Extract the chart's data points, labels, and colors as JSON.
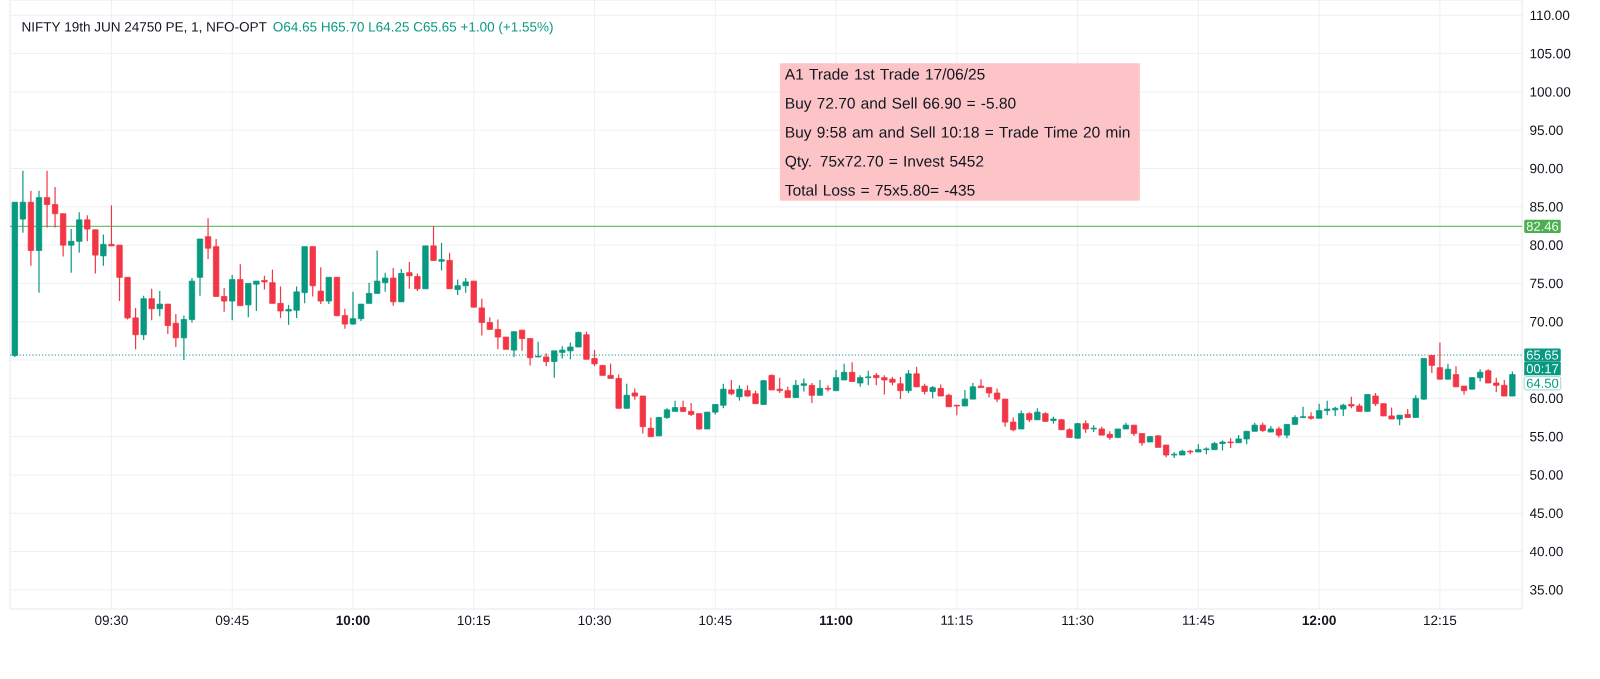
{
  "chart_data": {
    "type": "candlestick",
    "title": "NIFTY 19th JUN 24750 PE, 1, NFO-OPT",
    "subtitle": "O64.65 H65.70 L64.25 C65.65 +1.00 (+1.55%)",
    "x": [
      9.3,
      9.3167,
      9.3333,
      9.35,
      9.3667,
      9.3833,
      9.4,
      9.4167,
      9.4333,
      9.45,
      9.4667,
      9.4833,
      9.5,
      9.5167,
      9.5333,
      9.55,
      9.5667,
      9.5833,
      9.6,
      9.6167,
      9.6333,
      9.65,
      9.6667,
      9.6833,
      9.7,
      9.7167,
      9.7333,
      9.75,
      9.7667,
      9.7833,
      9.8,
      9.8167,
      9.8333,
      9.85,
      9.8667,
      9.8833,
      9.9,
      9.9167,
      9.9333,
      9.95,
      9.9667,
      9.9833,
      10.0,
      10.0167,
      10.0333,
      10.05,
      10.0667,
      10.0833,
      10.1,
      10.1167,
      10.1333,
      10.15,
      10.1667,
      10.1833,
      10.2,
      10.2167,
      10.2333,
      10.25,
      10.2667,
      10.2833,
      10.3,
      10.3167,
      10.3333,
      10.35,
      10.3667,
      10.3833,
      10.4,
      10.4167,
      10.4333,
      10.45,
      10.4667,
      10.4833,
      10.5,
      10.5167,
      10.5333,
      10.55,
      10.5667,
      10.5833,
      10.6,
      10.6167,
      10.6333,
      10.65,
      10.6667,
      10.6833,
      10.7,
      10.7167,
      10.7333,
      10.75,
      10.7667,
      10.7833,
      10.8,
      10.8167,
      10.8333,
      10.85,
      10.8667,
      10.8833,
      10.9,
      10.9167,
      10.9333,
      10.95,
      10.9667,
      10.9833,
      11.0,
      11.0167,
      11.0333,
      11.05,
      11.0667,
      11.0833,
      11.1,
      11.1167,
      11.1333,
      11.15,
      11.1667,
      11.1833,
      11.2,
      11.2167,
      11.2333,
      11.25,
      11.2667,
      11.2833,
      11.3,
      11.3167,
      11.3333,
      11.35,
      11.3667,
      11.3833,
      11.4,
      11.4167,
      11.4333,
      11.45,
      11.4667,
      11.4833,
      11.5,
      11.5167,
      11.5333,
      11.55,
      11.5667,
      11.5833,
      11.6,
      11.6167,
      11.6333,
      11.65,
      11.6667,
      11.6833,
      11.7,
      11.7167,
      11.7333,
      11.75,
      11.7667,
      11.7833,
      11.8,
      11.8167,
      11.8333,
      11.85,
      11.8667,
      11.8833,
      11.9,
      11.9167,
      11.9333,
      11.95,
      11.9667,
      11.9833,
      12.0,
      12.0167,
      12.0333,
      12.05,
      12.0667,
      12.0833,
      12.1,
      12.1167,
      12.1333,
      12.15,
      12.1667,
      12.1833,
      12.2,
      12.2167,
      12.2333,
      12.25,
      12.2667,
      12.2833,
      12.3,
      12.3167,
      12.3333,
      12.35,
      12.3667,
      12.3833,
      12.4
    ],
    "ohlc": [
      [
        65.6,
        85.6,
        65.4,
        85.6
      ],
      [
        83.4,
        89.7,
        81.6,
        85.6
      ],
      [
        85.6,
        87.1,
        77.3,
        79.3
      ],
      [
        79.3,
        87.1,
        73.8,
        86.2
      ],
      [
        86.2,
        89.7,
        82.3,
        85.3
      ],
      [
        85.3,
        87.6,
        82.3,
        84.1
      ],
      [
        84.1,
        84.1,
        78.5,
        80.0
      ],
      [
        80.0,
        82.1,
        76.4,
        80.5
      ],
      [
        80.5,
        84.3,
        79.0,
        83.3
      ],
      [
        83.3,
        83.9,
        80.5,
        82.1
      ],
      [
        82.0,
        82.0,
        76.3,
        78.7
      ],
      [
        78.6,
        81.4,
        77.3,
        80.1
      ],
      [
        80.1,
        85.2,
        79.9,
        79.9
      ],
      [
        80.0,
        80.0,
        72.7,
        75.8
      ],
      [
        75.8,
        75.8,
        70.3,
        70.5
      ],
      [
        70.5,
        71.8,
        66.4,
        68.3
      ],
      [
        68.3,
        73.4,
        67.6,
        73.0
      ],
      [
        73.0,
        74.3,
        70.2,
        71.7
      ],
      [
        71.7,
        74.0,
        70.7,
        72.3
      ],
      [
        72.3,
        72.3,
        68.4,
        69.5
      ],
      [
        69.8,
        71.0,
        66.7,
        67.9
      ],
      [
        67.9,
        70.8,
        65.0,
        70.3
      ],
      [
        70.3,
        75.7,
        69.9,
        75.3
      ],
      [
        75.8,
        80.8,
        73.4,
        80.8
      ],
      [
        81.1,
        83.5,
        78.2,
        79.6
      ],
      [
        79.8,
        80.8,
        73.3,
        73.3
      ],
      [
        73.3,
        74.4,
        71.3,
        72.7
      ],
      [
        72.7,
        76.1,
        70.2,
        75.5
      ],
      [
        75.5,
        77.5,
        72.1,
        72.1
      ],
      [
        72.2,
        75.0,
        70.6,
        75.0
      ],
      [
        74.9,
        75.3,
        71.4,
        75.3
      ],
      [
        75.4,
        76.0,
        74.2,
        75.2
      ],
      [
        75.1,
        76.8,
        72.4,
        72.4
      ],
      [
        72.4,
        74.6,
        70.5,
        71.4
      ],
      [
        71.4,
        72.2,
        69.6,
        71.6
      ],
      [
        71.5,
        74.6,
        70.5,
        73.9
      ],
      [
        73.8,
        79.8,
        72.4,
        79.8
      ],
      [
        79.8,
        79.8,
        73.3,
        74.7
      ],
      [
        74.0,
        77.1,
        72.3,
        72.7
      ],
      [
        72.7,
        75.8,
        72.3,
        75.8
      ],
      [
        75.8,
        75.8,
        70.7,
        70.8
      ],
      [
        70.8,
        71.7,
        69.1,
        69.7
      ],
      [
        69.7,
        73.9,
        69.6,
        70.4
      ],
      [
        70.4,
        72.3,
        70.1,
        72.3
      ],
      [
        72.4,
        75.1,
        72.4,
        73.7
      ],
      [
        73.7,
        79.3,
        73.7,
        75.3
      ],
      [
        75.1,
        76.4,
        73.9,
        75.7
      ],
      [
        75.7,
        77.0,
        72.1,
        72.6
      ],
      [
        72.6,
        76.9,
        72.6,
        76.3
      ],
      [
        76.4,
        77.8,
        74.3,
        76.0
      ],
      [
        75.9,
        76.3,
        74.0,
        74.3
      ],
      [
        74.3,
        79.9,
        74.3,
        79.9
      ],
      [
        79.9,
        82.5,
        78.0,
        78.0
      ],
      [
        77.9,
        80.3,
        76.7,
        78.1
      ],
      [
        78.0,
        79.0,
        74.3,
        74.3
      ],
      [
        74.2,
        75.5,
        73.5,
        74.7
      ],
      [
        74.7,
        75.7,
        73.8,
        75.2
      ],
      [
        75.3,
        75.3,
        71.9,
        71.9
      ],
      [
        71.8,
        73.0,
        68.2,
        69.9
      ],
      [
        69.9,
        70.6,
        69.0,
        69.0
      ],
      [
        69.0,
        70.3,
        66.4,
        68.0
      ],
      [
        68.0,
        68.0,
        66.4,
        66.4
      ],
      [
        66.3,
        68.7,
        65.4,
        68.7
      ],
      [
        68.9,
        68.9,
        66.2,
        67.8
      ],
      [
        67.8,
        67.8,
        64.3,
        65.3
      ],
      [
        65.4,
        67.4,
        65.4,
        65.5
      ],
      [
        65.4,
        65.9,
        64.2,
        64.8
      ],
      [
        64.8,
        66.2,
        62.7,
        66.2
      ],
      [
        66.0,
        66.8,
        65.2,
        66.3
      ],
      [
        66.2,
        67.3,
        65.1,
        66.7
      ],
      [
        66.7,
        68.7,
        66.7,
        68.6
      ],
      [
        68.3,
        68.7,
        65.1,
        65.1
      ],
      [
        65.2,
        66.3,
        64.2,
        64.5
      ],
      [
        64.3,
        64.3,
        63.0,
        63.0
      ],
      [
        63.0,
        64.5,
        62.6,
        62.6
      ],
      [
        62.6,
        63.1,
        58.7,
        58.7
      ],
      [
        58.7,
        61.9,
        58.7,
        60.4
      ],
      [
        60.7,
        61.3,
        59.8,
        60.3
      ],
      [
        60.3,
        60.3,
        55.4,
        56.3
      ],
      [
        56.1,
        57.5,
        55.0,
        55.0
      ],
      [
        55.1,
        57.6,
        55.1,
        57.5
      ],
      [
        57.5,
        58.7,
        57.3,
        58.5
      ],
      [
        58.3,
        59.7,
        58.3,
        58.8
      ],
      [
        58.8,
        59.7,
        58.2,
        58.3
      ],
      [
        58.3,
        59.4,
        57.7,
        57.9
      ],
      [
        58.0,
        58.0,
        55.9,
        56.0
      ],
      [
        56.0,
        58.2,
        56.0,
        58.2
      ],
      [
        58.2,
        59.2,
        57.9,
        59.2
      ],
      [
        59.1,
        61.9,
        58.7,
        61.2
      ],
      [
        61.1,
        62.4,
        60.4,
        60.6
      ],
      [
        60.2,
        61.7,
        59.7,
        61.2
      ],
      [
        61.0,
        61.7,
        60.2,
        60.3
      ],
      [
        60.6,
        61.0,
        59.3,
        59.3
      ],
      [
        59.2,
        62.4,
        59.2,
        62.3
      ],
      [
        63.0,
        63.1,
        61.1,
        61.1
      ],
      [
        61.2,
        62.7,
        60.7,
        61.0
      ],
      [
        61.0,
        61.5,
        60.1,
        60.1
      ],
      [
        60.1,
        62.4,
        60.1,
        61.7
      ],
      [
        61.7,
        62.6,
        60.9,
        61.9
      ],
      [
        61.7,
        62.0,
        59.4,
        60.4
      ],
      [
        60.4,
        62.4,
        60.4,
        61.3
      ],
      [
        61.3,
        61.7,
        60.9,
        61.2
      ],
      [
        61.0,
        63.7,
        61.0,
        62.7
      ],
      [
        62.4,
        64.5,
        62.4,
        63.4
      ],
      [
        63.4,
        64.7,
        62.2,
        62.2
      ],
      [
        62.0,
        63.0,
        61.5,
        62.7
      ],
      [
        62.7,
        63.6,
        61.7,
        62.8
      ],
      [
        63.0,
        63.3,
        61.7,
        62.7
      ],
      [
        62.7,
        63.0,
        60.5,
        62.4
      ],
      [
        62.5,
        62.8,
        61.7,
        62.1
      ],
      [
        61.9,
        62.8,
        59.9,
        61.0
      ],
      [
        61.0,
        63.7,
        60.7,
        63.2
      ],
      [
        63.2,
        64.1,
        61.5,
        61.5
      ],
      [
        61.6,
        61.9,
        60.5,
        60.9
      ],
      [
        60.9,
        61.6,
        60.0,
        61.4
      ],
      [
        61.3,
        61.8,
        60.3,
        60.3
      ],
      [
        60.4,
        60.6,
        58.9,
        58.9
      ],
      [
        59.1,
        59.1,
        57.8,
        59.0
      ],
      [
        59.0,
        61.1,
        59.0,
        59.9
      ],
      [
        59.9,
        62.0,
        59.9,
        61.5
      ],
      [
        61.6,
        62.5,
        61.4,
        61.4
      ],
      [
        61.4,
        61.4,
        60.1,
        60.7
      ],
      [
        60.7,
        61.3,
        59.5,
        59.9
      ],
      [
        59.9,
        59.9,
        56.3,
        56.9
      ],
      [
        56.9,
        57.5,
        55.7,
        55.9
      ],
      [
        56.0,
        58.4,
        56.0,
        58.0
      ],
      [
        58.0,
        58.2,
        56.9,
        57.2
      ],
      [
        57.2,
        58.7,
        57.2,
        58.2
      ],
      [
        58.0,
        58.2,
        56.9,
        57.0
      ],
      [
        57.1,
        57.6,
        56.7,
        57.3
      ],
      [
        57.2,
        57.3,
        55.9,
        55.9
      ],
      [
        55.9,
        56.1,
        54.9,
        54.9
      ],
      [
        54.8,
        56.8,
        54.7,
        56.7
      ],
      [
        56.7,
        57.1,
        55.5,
        56.0
      ],
      [
        56.0,
        56.5,
        55.6,
        56.1
      ],
      [
        56.0,
        56.3,
        55.2,
        55.2
      ],
      [
        55.3,
        55.7,
        54.6,
        54.9
      ],
      [
        54.9,
        56.0,
        54.8,
        56.0
      ],
      [
        56.0,
        56.8,
        56.0,
        56.5
      ],
      [
        56.5,
        56.5,
        55.1,
        55.4
      ],
      [
        55.4,
        55.4,
        53.8,
        54.2
      ],
      [
        54.3,
        55.1,
        54.3,
        55.0
      ],
      [
        55.1,
        55.2,
        53.6,
        53.6
      ],
      [
        53.9,
        53.9,
        52.3,
        52.6
      ],
      [
        52.6,
        53.0,
        52.2,
        52.7
      ],
      [
        52.6,
        53.3,
        52.6,
        53.1
      ],
      [
        53.1,
        53.3,
        52.7,
        53.0
      ],
      [
        53.0,
        54.0,
        53.0,
        53.3
      ],
      [
        53.3,
        53.6,
        52.7,
        53.4
      ],
      [
        53.3,
        54.3,
        53.3,
        54.1
      ],
      [
        54.1,
        54.5,
        53.2,
        54.3
      ],
      [
        54.3,
        54.8,
        53.5,
        54.2
      ],
      [
        54.2,
        55.2,
        54.2,
        54.7
      ],
      [
        54.7,
        55.7,
        54.0,
        55.7
      ],
      [
        55.7,
        56.8,
        55.7,
        56.5
      ],
      [
        56.5,
        56.8,
        55.6,
        55.8
      ],
      [
        55.6,
        56.4,
        55.6,
        56.0
      ],
      [
        56.0,
        56.3,
        54.9,
        55.2
      ],
      [
        55.2,
        56.6,
        54.8,
        56.6
      ],
      [
        56.6,
        57.8,
        56.6,
        57.5
      ],
      [
        57.5,
        58.9,
        57.4,
        57.6
      ],
      [
        57.6,
        58.2,
        57.2,
        57.4
      ],
      [
        57.4,
        59.3,
        57.4,
        58.4
      ],
      [
        58.4,
        59.7,
        57.8,
        58.6
      ],
      [
        58.5,
        58.9,
        57.7,
        58.7
      ],
      [
        58.6,
        59.3,
        57.7,
        59.1
      ],
      [
        59.2,
        60.2,
        58.7,
        59.0
      ],
      [
        59.0,
        59.3,
        58.3,
        58.3
      ],
      [
        58.3,
        60.5,
        58.3,
        60.5
      ],
      [
        60.3,
        60.7,
        59.0,
        59.3
      ],
      [
        59.3,
        59.3,
        57.7,
        57.7
      ],
      [
        57.7,
        58.8,
        57.3,
        57.3
      ],
      [
        57.3,
        57.8,
        56.5,
        57.8
      ],
      [
        57.9,
        58.6,
        57.5,
        57.5
      ],
      [
        57.5,
        60.4,
        57.5,
        60.0
      ],
      [
        59.9,
        65.2,
        59.8,
        65.2
      ],
      [
        65.6,
        65.6,
        63.3,
        64.3
      ],
      [
        64.0,
        67.3,
        62.5,
        62.5
      ],
      [
        62.5,
        64.5,
        62.5,
        63.8
      ],
      [
        63.1,
        64.2,
        61.5,
        61.5
      ],
      [
        61.6,
        61.6,
        60.5,
        61.0
      ],
      [
        61.2,
        62.8,
        61.2,
        62.7
      ],
      [
        62.7,
        63.8,
        62.2,
        63.4
      ],
      [
        63.6,
        63.8,
        62.0,
        62.0
      ],
      [
        62.0,
        62.7,
        60.8,
        61.7
      ],
      [
        61.7,
        62.4,
        60.3,
        60.3
      ],
      [
        60.3,
        63.5,
        60.3,
        63.1
      ]
    ],
    "colors": [
      "#089981",
      "#089981",
      "#f23645",
      "#089981",
      "#f23645",
      "#f23645",
      "#f23645",
      "#089981",
      "#089981",
      "#f23645",
      "#f23645",
      "#089981",
      "#f23645",
      "#f23645",
      "#f23645",
      "#f23645",
      "#089981",
      "#f23645",
      "#089981",
      "#f23645",
      "#f23645",
      "#089981",
      "#089981",
      "#089981",
      "#f23645",
      "#f23645",
      "#f23645",
      "#089981",
      "#f23645",
      "#089981",
      "#089981",
      "#f23645",
      "#f23645",
      "#f23645",
      "#089981",
      "#089981",
      "#089981",
      "#f23645",
      "#f23645",
      "#089981",
      "#f23645",
      "#f23645",
      "#089981",
      "#089981",
      "#089981",
      "#089981",
      "#089981",
      "#f23645",
      "#089981",
      "#f23645",
      "#f23645",
      "#089981",
      "#f23645",
      "#089981",
      "#f23645",
      "#089981",
      "#089981",
      "#f23645",
      "#f23645",
      "#f23645",
      "#f23645",
      "#f23645",
      "#089981",
      "#f23645",
      "#f23645",
      "#089981",
      "#f23645",
      "#089981",
      "#089981",
      "#089981",
      "#089981",
      "#f23645",
      "#f23645",
      "#f23645",
      "#f23645",
      "#f23645",
      "#089981",
      "#f23645",
      "#f23645",
      "#f23645",
      "#089981",
      "#089981",
      "#089981",
      "#f23645",
      "#f23645",
      "#f23645",
      "#089981",
      "#089981",
      "#089981",
      "#f23645",
      "#089981",
      "#f23645",
      "#f23645",
      "#089981",
      "#f23645",
      "#f23645",
      "#f23645",
      "#089981",
      "#089981",
      "#f23645",
      "#089981",
      "#f23645",
      "#089981",
      "#089981",
      "#f23645",
      "#089981",
      "#089981",
      "#f23645",
      "#f23645",
      "#f23645",
      "#f23645",
      "#089981",
      "#f23645",
      "#f23645",
      "#089981",
      "#f23645",
      "#f23645",
      "#f23645",
      "#089981",
      "#089981",
      "#f23645",
      "#f23645",
      "#f23645",
      "#f23645",
      "#f23645",
      "#089981",
      "#f23645",
      "#089981",
      "#f23645",
      "#089981",
      "#f23645",
      "#f23645",
      "#089981",
      "#f23645",
      "#089981",
      "#f23645",
      "#f23645",
      "#089981",
      "#089981",
      "#f23645",
      "#f23645",
      "#089981",
      "#f23645",
      "#f23645",
      "#089981",
      "#089981",
      "#f23645",
      "#089981",
      "#089981",
      "#089981",
      "#089981",
      "#f23645",
      "#089981",
      "#089981",
      "#089981",
      "#f23645",
      "#089981",
      "#f23645",
      "#089981",
      "#089981",
      "#089981",
      "#f23645",
      "#089981",
      "#089981",
      "#089981",
      "#089981",
      "#f23645",
      "#f23645",
      "#089981",
      "#f23645",
      "#f23645",
      "#f23645",
      "#089981",
      "#f23645",
      "#089981",
      "#089981",
      "#f23645",
      "#f23645",
      "#089981",
      "#f23645",
      "#f23645",
      "#089981",
      "#089981",
      "#f23645",
      "#f23645",
      "#f23645",
      "#089981"
    ],
    "xlim": [
      9.29,
      12.42
    ],
    "ylim": [
      32.5,
      112
    ],
    "xticks": [
      {
        "value": 9.5,
        "label": "09:30"
      },
      {
        "value": 9.75,
        "label": "09:45"
      },
      {
        "value": 10,
        "label": "10:00"
      },
      {
        "value": 10.25,
        "label": "10:15"
      },
      {
        "value": 10.5,
        "label": "10:30"
      },
      {
        "value": 10.75,
        "label": "10:45"
      },
      {
        "value": 11,
        "label": "11:00"
      },
      {
        "value": 11.25,
        "label": "11:15"
      },
      {
        "value": 11.5,
        "label": "11:30"
      },
      {
        "value": 11.75,
        "label": "11:45"
      },
      {
        "value": 12,
        "label": "12:00"
      },
      {
        "value": 12.25,
        "label": "12:15"
      }
    ],
    "yticks": [
      {
        "value": 35,
        "label": "35.00"
      },
      {
        "value": 40,
        "label": "40.00"
      },
      {
        "value": 45,
        "label": "45.00"
      },
      {
        "value": 50,
        "label": "50.00"
      },
      {
        "value": 55,
        "label": "55.00"
      },
      {
        "value": 60,
        "label": "60.00"
      },
      {
        "value": 65,
        "label": null
      },
      {
        "value": 70,
        "label": "70.00"
      },
      {
        "value": 75,
        "label": "75.00"
      },
      {
        "value": 80,
        "label": "80.00"
      },
      {
        "value": 85,
        "label": "85.00"
      },
      {
        "value": 90,
        "label": "90.00"
      },
      {
        "value": 95,
        "label": "95.00"
      },
      {
        "value": 100,
        "label": "100.00"
      },
      {
        "value": 105,
        "label": "105.00"
      },
      {
        "value": 110,
        "label": "110.00"
      }
    ],
    "grid": true,
    "ref_lines": [
      {
        "axis": "y",
        "value": 82.46,
        "label": "82.46",
        "color": "#4caf50",
        "line_style": "solid"
      },
      {
        "axis": "y",
        "value": 65.65,
        "label": "65.65",
        "color": "#089981",
        "line_style": "dotted"
      }
    ],
    "annotations": [
      "A1 Trade  1st Trade 17/06/25",
      "Buy 72.70 and Sell 66.90 =  -5.80",
      "Buy 9:58 am and Sell 10:18 = Trade Time 20 min",
      "Qty. 75x72.70 = Invest  5452",
      "Total Loss = 75x5.80= -435",
      "00:17",
      "64.50"
    ]
  }
}
